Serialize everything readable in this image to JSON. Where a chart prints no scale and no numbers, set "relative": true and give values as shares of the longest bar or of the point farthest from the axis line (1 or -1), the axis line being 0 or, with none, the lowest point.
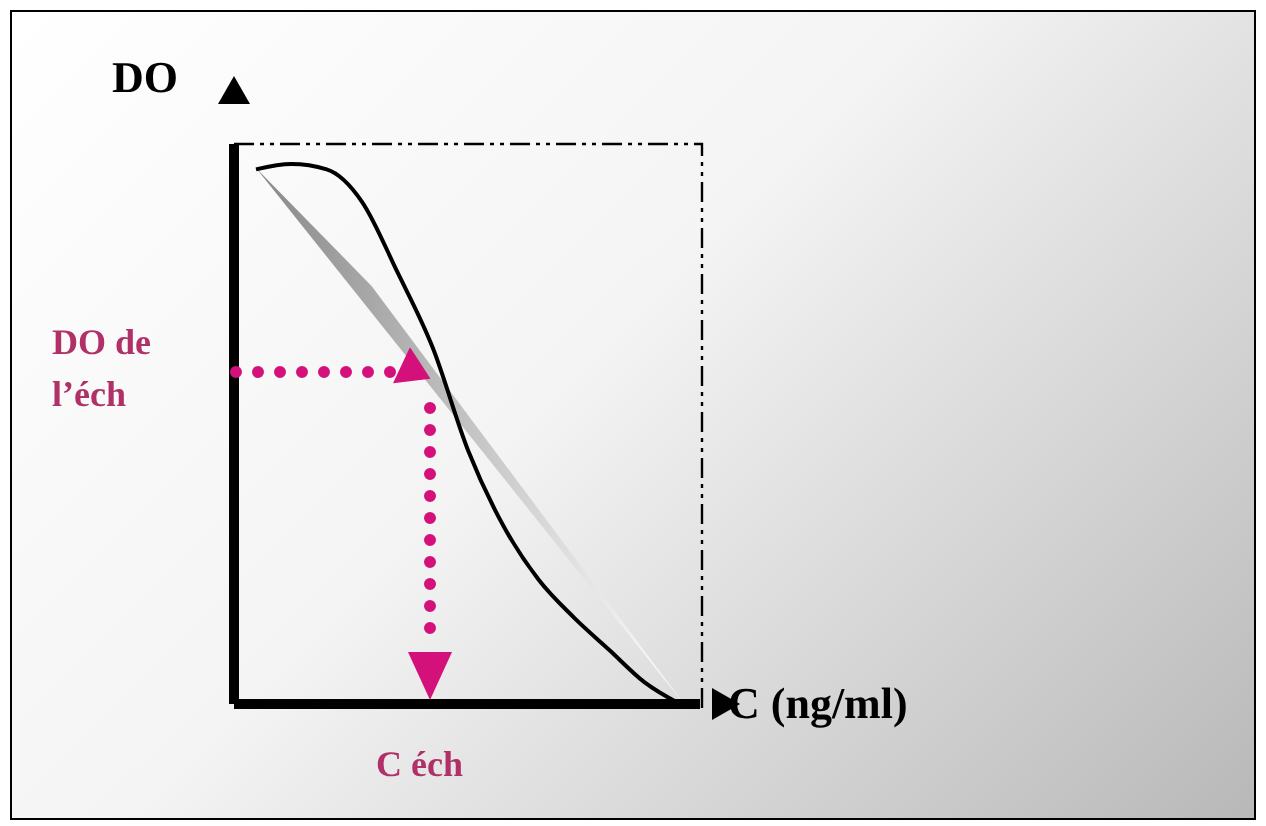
{
  "chart_data": {
    "type": "line",
    "relative": true,
    "xlabel": "C (ng/ml)",
    "ylabel": "DO",
    "categories": [
      null,
      null,
      null,
      null,
      null,
      null,
      null,
      null,
      null,
      null,
      null,
      null,
      null
    ],
    "series": [
      {
        "color": "#000000",
        "values": [
          0.99,
          1,
          0.99,
          0.93,
          0.8,
          0.66,
          0.47,
          0.33,
          0.23,
          0.16,
          0.1,
          0.04,
          0
        ]
      }
    ],
    "annotations": [
      "DO de l’éch",
      "C éch"
    ],
    "marker": "none",
    "line_style": "solid"
  }
}
